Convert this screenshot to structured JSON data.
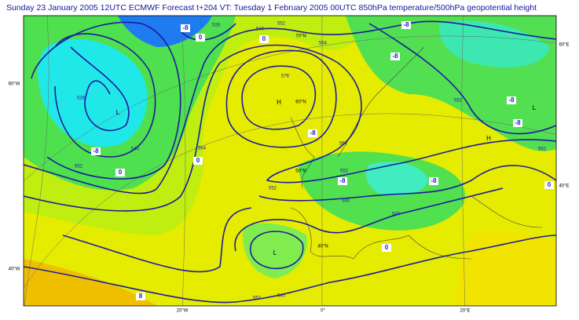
{
  "header": {
    "title": "Sunday 23 January 2005 12UTC ECMWF  Forecast t+204 VT: Tuesday 1 February 2005 00UTC 850hPa temperature/500hPa  geopotential height"
  },
  "grid_labels": [
    "60°W",
    "40°W",
    "60°E",
    "40°E",
    "20°W",
    "0°",
    "20°E",
    "70°N",
    "60°N",
    "50°N",
    "40°N"
  ],
  "height_labels": [
    "528",
    "540",
    "552",
    "564",
    "576",
    "564",
    "552",
    "540",
    "552",
    "564",
    "552",
    "540",
    "528",
    "552",
    "540",
    "540",
    "552",
    "552"
  ],
  "temperature_labels": [
    "-8",
    "0",
    "-8",
    "-8",
    "-8",
    "-8",
    "0",
    "0",
    "-8",
    "-8",
    "-8",
    "-8",
    "0",
    "8",
    "0",
    "0"
  ],
  "centers": [
    "L",
    "H",
    "L",
    "H",
    "L"
  ]
}
